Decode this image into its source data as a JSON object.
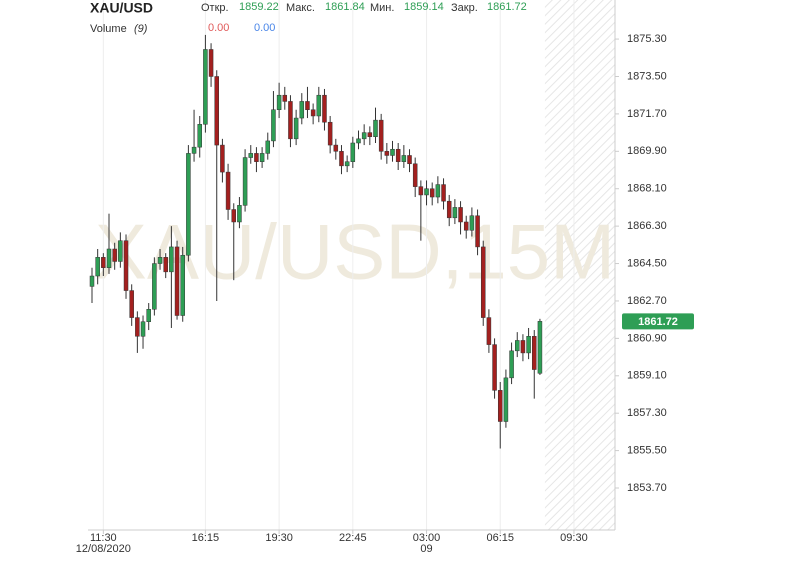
{
  "chart_data": {
    "type": "candlestick",
    "title": "XAU/USD",
    "ohlc_labels": {
      "open": "Откр.",
      "high": "Макс.",
      "low": "Мин.",
      "close": "Закр."
    },
    "volume_label": "Volume",
    "volume_period": "(9)",
    "volume_values": [
      "0.00",
      "0.00"
    ],
    "volume_colors": [
      "#e05a5a",
      "#4a86e8"
    ],
    "watermark": "XAU/USD,15M",
    "up_color": "#2e9e55",
    "down_color": "#a3201f",
    "categories": [
      null,
      null,
      "11:30",
      null,
      null,
      null,
      null,
      null,
      null,
      null,
      null,
      null,
      null,
      null,
      null,
      null,
      null,
      null,
      null,
      null,
      "16:15",
      null,
      null,
      null,
      null,
      null,
      null,
      null,
      null,
      null,
      null,
      null,
      null,
      "19:30",
      null,
      null,
      null,
      null,
      null,
      null,
      null,
      null,
      null,
      null,
      null,
      null,
      "22:45",
      null,
      null,
      null,
      null,
      null,
      null,
      null,
      null,
      null,
      null,
      null,
      null,
      "03:00",
      null,
      null,
      null,
      null,
      null,
      null,
      null,
      null,
      null,
      null,
      null,
      null,
      "06:15",
      null,
      null,
      null,
      null,
      null,
      null,
      null,
      null,
      null,
      null,
      null,
      null,
      "09:30",
      null
    ],
    "date_labels": [
      null,
      null,
      "12/08/2020",
      null,
      null,
      null,
      null,
      null,
      null,
      null,
      null,
      null,
      null,
      null,
      null,
      null,
      null,
      null,
      null,
      null,
      null,
      null,
      null,
      null,
      null,
      null,
      null,
      null,
      null,
      null,
      null,
      null,
      null,
      null,
      null,
      null,
      null,
      null,
      null,
      null,
      null,
      null,
      null,
      null,
      null,
      null,
      null,
      null,
      null,
      null,
      null,
      null,
      null,
      null,
      null,
      null,
      null,
      null,
      null,
      "09",
      null,
      null,
      null,
      null,
      null,
      null,
      null,
      null,
      null,
      null,
      null,
      null,
      null,
      null,
      null,
      null,
      null,
      null,
      null,
      null,
      null,
      null,
      null,
      null,
      null,
      null,
      null
    ],
    "open": [
      1863.4,
      1863.9,
      1864.8,
      1864.3,
      1865.2,
      1864.6,
      1865.6,
      1863.2,
      1861.9,
      1861.0,
      1861.7,
      1862.3,
      1864.5,
      1864.8,
      1864.1,
      1865.3,
      1862.0,
      1864.9,
      1869.8,
      1870.1,
      1871.2,
      1874.8,
      1873.5,
      1870.2,
      1868.9,
      1867.1,
      1866.5,
      1867.3,
      1869.6,
      1869.8,
      1869.4,
      1869.8,
      1870.4,
      1871.9,
      1872.6,
      1872.3,
      1870.5,
      1871.5,
      1872.3,
      1871.9,
      1871.6,
      1872.6,
      1871.3,
      1870.2,
      1869.9,
      1869.2,
      1869.4,
      1870.3,
      1870.5,
      1870.8,
      1870.6,
      1871.4,
      1869.9,
      1869.7,
      1870.0,
      1869.4,
      1869.7,
      1869.3,
      1868.2,
      1867.8,
      1868.1,
      1867.7,
      1868.3,
      1867.5,
      1866.7,
      1867.2,
      1866.5,
      1866.1,
      1866.8,
      1865.3,
      1861.9,
      1860.6,
      1858.4,
      1856.9,
      1859.0,
      1860.3,
      1860.8,
      1860.2,
      1861.0,
      1859.22,
      null,
      null,
      null,
      null,
      null,
      null,
      null
    ],
    "high": [
      1864.3,
      1865.2,
      1865.0,
      1866.9,
      1865.5,
      1866.0,
      1865.9,
      1863.5,
      1862.2,
      1862.0,
      1862.6,
      1864.8,
      1865.2,
      1865.0,
      1866.3,
      1865.6,
      1865.3,
      1870.2,
      1871.9,
      1871.6,
      1875.5,
      1875.1,
      1873.8,
      1870.5,
      1869.3,
      1867.4,
      1867.7,
      1870.0,
      1870.2,
      1870.1,
      1870.1,
      1870.8,
      1872.8,
      1873.2,
      1873.0,
      1872.6,
      1871.9,
      1872.7,
      1873.0,
      1872.2,
      1873.0,
      1872.9,
      1871.6,
      1870.5,
      1870.2,
      1869.7,
      1870.6,
      1870.9,
      1871.2,
      1871.1,
      1872.0,
      1871.7,
      1870.3,
      1870.4,
      1870.3,
      1870.2,
      1870.0,
      1869.6,
      1868.5,
      1868.5,
      1868.4,
      1868.7,
      1868.6,
      1867.8,
      1867.6,
      1867.5,
      1866.8,
      1867.2,
      1867.1,
      1865.6,
      1862.3,
      1860.9,
      1858.8,
      1859.4,
      1860.7,
      1861.2,
      1861.1,
      1861.4,
      1861.3,
      1861.84,
      null,
      null,
      null,
      null,
      null,
      null,
      null
    ],
    "low": [
      1862.6,
      1863.5,
      1863.9,
      1864.0,
      1864.2,
      1864.3,
      1862.8,
      1861.5,
      1860.2,
      1860.4,
      1861.3,
      1862.0,
      1864.2,
      1863.8,
      1861.4,
      1861.8,
      1861.7,
      1864.6,
      1869.4,
      1869.6,
      1870.8,
      1873.0,
      1862.7,
      1868.4,
      1866.6,
      1863.7,
      1866.2,
      1867.0,
      1869.3,
      1868.9,
      1869.1,
      1869.5,
      1870.1,
      1871.5,
      1871.9,
      1870.1,
      1870.2,
      1871.2,
      1871.5,
      1871.2,
      1871.3,
      1870.9,
      1869.8,
      1869.5,
      1868.8,
      1868.9,
      1869.1,
      1870.0,
      1870.2,
      1870.2,
      1870.3,
      1869.5,
      1869.3,
      1869.4,
      1869.0,
      1869.1,
      1868.9,
      1867.7,
      1865.6,
      1867.3,
      1867.3,
      1867.4,
      1867.1,
      1866.3,
      1866.4,
      1865.9,
      1865.7,
      1865.8,
      1864.9,
      1861.5,
      1860.2,
      1858.0,
      1855.6,
      1856.6,
      1858.7,
      1860.0,
      1859.8,
      1859.9,
      1858.0,
      1859.14,
      null,
      null,
      null,
      null,
      null,
      null,
      null
    ],
    "close": [
      1863.9,
      1864.8,
      1864.3,
      1865.2,
      1864.6,
      1865.6,
      1863.2,
      1861.9,
      1861.0,
      1861.7,
      1862.3,
      1864.5,
      1864.8,
      1864.1,
      1865.3,
      1862.0,
      1864.9,
      1869.8,
      1870.1,
      1871.2,
      1874.8,
      1873.5,
      1870.2,
      1868.9,
      1867.1,
      1866.5,
      1867.3,
      1869.6,
      1869.8,
      1869.4,
      1869.8,
      1870.4,
      1871.9,
      1872.6,
      1872.3,
      1870.5,
      1871.5,
      1872.3,
      1871.9,
      1871.6,
      1872.6,
      1871.3,
      1870.2,
      1869.9,
      1869.2,
      1869.4,
      1870.3,
      1870.5,
      1870.8,
      1870.6,
      1871.4,
      1869.9,
      1869.7,
      1870.0,
      1869.4,
      1869.7,
      1869.3,
      1868.2,
      1867.8,
      1868.1,
      1867.7,
      1868.3,
      1867.5,
      1866.7,
      1867.2,
      1866.5,
      1866.1,
      1866.8,
      1865.3,
      1861.9,
      1860.6,
      1858.4,
      1856.9,
      1859.0,
      1860.3,
      1860.8,
      1860.2,
      1861.0,
      1859.4,
      1861.72,
      null,
      null,
      null,
      null,
      null,
      null,
      null
    ],
    "ylim": [
      1851.68,
      1877.18
    ],
    "yticks": [
      {
        "value": 1875.3,
        "label": "1875.30"
      },
      {
        "value": 1873.5,
        "label": "1873.50"
      },
      {
        "value": 1871.7,
        "label": "1871.70"
      },
      {
        "value": 1869.9,
        "label": "1869.90"
      },
      {
        "value": 1868.1,
        "label": "1868.10"
      },
      {
        "value": 1866.3,
        "label": "1866.30"
      },
      {
        "value": 1864.5,
        "label": "1864.50"
      },
      {
        "value": 1862.7,
        "label": "1862.70"
      },
      {
        "value": 1860.9,
        "label": "1860.90"
      },
      {
        "value": 1859.1,
        "label": "1859.10"
      },
      {
        "value": 1857.3,
        "label": "1857.30"
      },
      {
        "value": 1855.5,
        "label": "1855.50"
      },
      {
        "value": 1853.7,
        "label": "1853.70"
      }
    ]
  }
}
